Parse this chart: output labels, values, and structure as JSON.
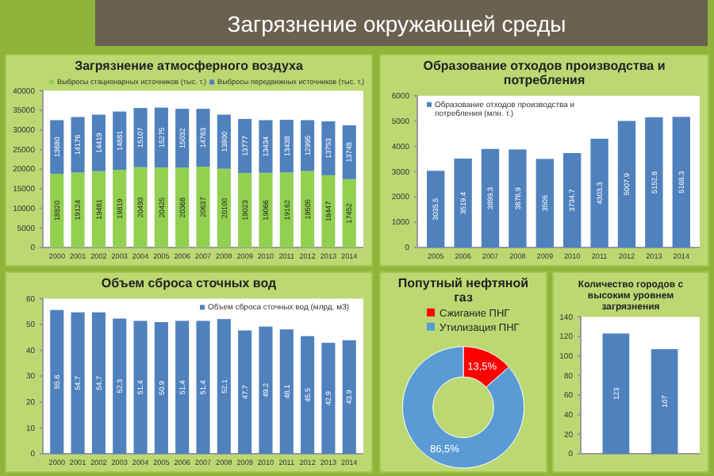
{
  "chart_data": [
    {
      "type": "other",
      "title": "Загрязнение окружающей среды"
    },
    {
      "type": "bar",
      "title": "Загрязнение атмосферного воздуха",
      "categories": [
        "2000",
        "2001",
        "2002",
        "2003",
        "2004",
        "2005",
        "2006",
        "2007",
        "2008",
        "2009",
        "2010",
        "2011",
        "2012",
        "2013",
        "2014"
      ],
      "stacked": true,
      "series": [
        {
          "name": "Выбросы стационарных источников (тыс. т.)",
          "color": "#92d050",
          "values": [
            18820,
            19124,
            19481,
            19819,
            20493,
            20425,
            20368,
            20637,
            20100,
            19023,
            19066,
            19162,
            19505,
            18447,
            17452
          ]
        },
        {
          "name": "Выбросы передвижных источников (тыс. т.)",
          "color": "#4f81bd",
          "values": [
            13680,
            14176,
            14419,
            14881,
            15107,
            15275,
            15032,
            14763,
            13800,
            13777,
            13434,
            13438,
            12995,
            13753,
            13748
          ]
        }
      ],
      "ylim": [
        0,
        40000
      ],
      "yticks": [
        0,
        5000,
        10000,
        15000,
        20000,
        25000,
        30000,
        35000,
        40000
      ],
      "data_labels": true,
      "legend": "top",
      "grid": false
    },
    {
      "type": "bar",
      "title": "Образование отходов производства и потребления",
      "categories": [
        "2005",
        "2006",
        "2007",
        "2008",
        "2009",
        "2010",
        "2011",
        "2012",
        "2013",
        "2014"
      ],
      "series": [
        {
          "name": "Образование отходов производства и потребления (млн. т.)",
          "color": "#4f81bd",
          "values": [
            3035.5,
            3519.4,
            3899.3,
            3878.9,
            3505,
            3734.7,
            4303.3,
            5007.9,
            5152.8,
            5168.3
          ]
        }
      ],
      "ylim": [
        0,
        6000
      ],
      "yticks": [
        0,
        1000,
        2000,
        3000,
        4000,
        5000,
        6000
      ],
      "data_labels": true,
      "legend": "top left",
      "grid": false
    },
    {
      "type": "bar",
      "title": "Объем сброса сточных вод",
      "categories": [
        "2000",
        "2001",
        "2002",
        "2003",
        "2004",
        "2005",
        "2006",
        "2007",
        "2008",
        "2009",
        "2010",
        "2011",
        "2012",
        "2013",
        "2014"
      ],
      "series": [
        {
          "name": "Объем сброса сточных вод (млрд. м3)",
          "color": "#4f81bd",
          "values": [
            55.6,
            54.7,
            54.7,
            52.3,
            51.4,
            50.9,
            51.4,
            51.4,
            52.1,
            47.7,
            49.2,
            48.1,
            45.5,
            42.9,
            43.9
          ]
        }
      ],
      "ylim": [
        0,
        60
      ],
      "yticks": [
        0,
        10,
        20,
        30,
        40,
        50,
        60
      ],
      "data_labels": true,
      "legend": "top right",
      "grid": false
    },
    {
      "type": "donut",
      "title": "Попутный нефтяной газ",
      "categories": [
        "Сжигание ПНГ",
        "Утилизация ПНГ"
      ],
      "values": [
        13.5,
        86.5
      ],
      "colors": [
        "#ff0000",
        "#5b9bd5"
      ],
      "value_labels": [
        "13,5%",
        "86,5%"
      ],
      "legend": "top"
    },
    {
      "type": "bar",
      "title": "Количество городов с высоким уровнем загрязнения",
      "categories": [
        null,
        null
      ],
      "series": [
        {
          "color": "#4f81bd",
          "values": [
            123,
            107
          ]
        }
      ],
      "ylim": [
        0,
        140
      ],
      "yticks": [
        0,
        20,
        40,
        60,
        80,
        100,
        120,
        140
      ],
      "data_labels": true,
      "grid": false
    }
  ]
}
